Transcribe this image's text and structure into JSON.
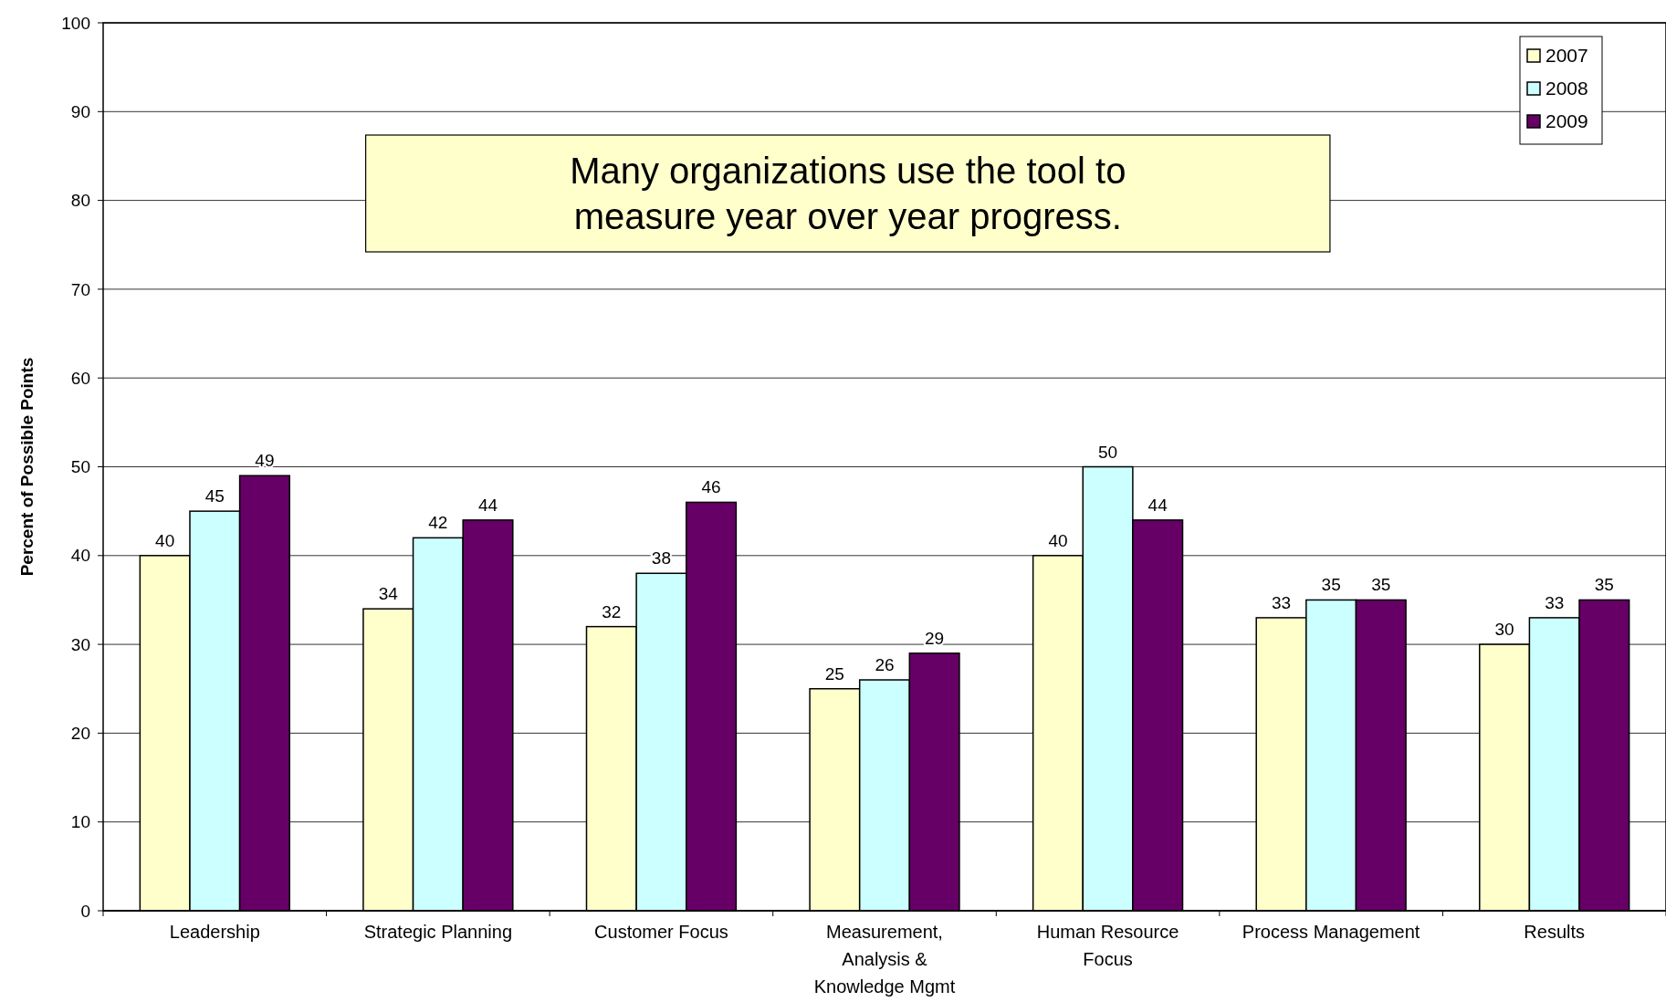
{
  "chart_data": {
    "type": "bar",
    "ylabel": "Percent of Possible Points",
    "categories": [
      "Leadership",
      "Strategic Planning",
      "Customer Focus",
      "Measurement, Analysis & Knowledge Mgmt",
      "Human Resource Focus",
      "Process Management",
      "Results"
    ],
    "series": [
      {
        "name": "2007",
        "color": "#ffffcc",
        "values": [
          40,
          34,
          32,
          25,
          40,
          33,
          30
        ]
      },
      {
        "name": "2008",
        "color": "#ccffff",
        "values": [
          45,
          42,
          38,
          26,
          50,
          35,
          33
        ]
      },
      {
        "name": "2009",
        "color": "#660066",
        "values": [
          49,
          44,
          46,
          29,
          44,
          35,
          35
        ]
      }
    ],
    "ylim": [
      0,
      100
    ],
    "yticks": [
      0,
      10,
      20,
      30,
      40,
      50,
      60,
      70,
      80,
      90,
      100
    ],
    "grid": "y",
    "legend": "top right",
    "data_labels": true,
    "annotations": [
      "Many organizations use the tool to measure year over year progress."
    ]
  }
}
